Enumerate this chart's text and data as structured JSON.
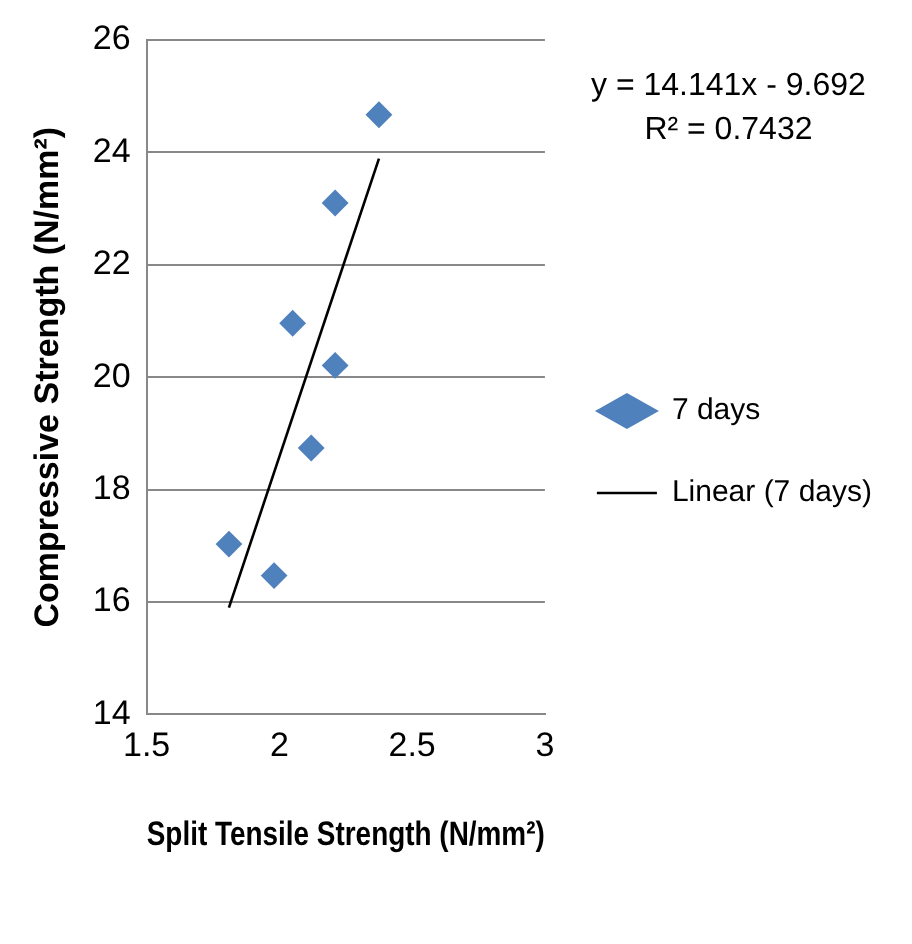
{
  "chart_data": {
    "type": "scatter",
    "xlabel": "Split Tensile Strength (N/mm²)",
    "ylabel": "Compressive Strength (N/mm²)",
    "series": [
      {
        "name": "7 days",
        "color": "#4f81bd",
        "marker": "diamond",
        "x": [
          2.375,
          2.21,
          2.05,
          2.21,
          2.12,
          1.81,
          1.98
        ],
        "values": [
          24.67,
          23.1,
          20.96,
          20.21,
          18.74,
          17.03,
          16.47
        ]
      },
      {
        "name": "Linear (7 days)",
        "type": "line",
        "color": "#000000",
        "marker": "none",
        "line_style": "solid",
        "x": [
          1.81,
          2.375
        ],
        "values": [
          15.9,
          23.89
        ]
      }
    ],
    "xlim": [
      1.5,
      3
    ],
    "xticks": [
      1.5,
      2,
      2.5,
      3
    ],
    "ylim": [
      14,
      26
    ],
    "yticks": [
      14,
      16,
      18,
      20,
      22,
      24,
      26
    ],
    "grid": "y",
    "legend": "right",
    "annotations": [
      "y = 14.141x - 9.692",
      "R² = 0.7432"
    ]
  }
}
